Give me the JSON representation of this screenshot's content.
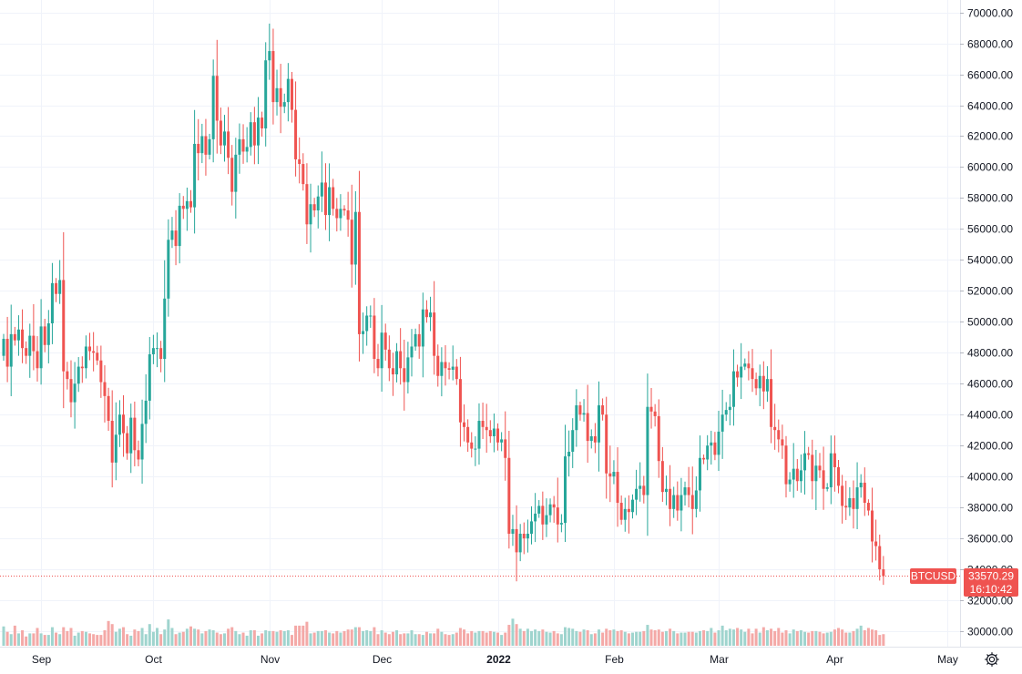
{
  "chart_data": {
    "type": "candlestick",
    "symbol": "BTCUSD",
    "last_price": "33570.29",
    "countdown": "16:10:42",
    "colors": {
      "up": "#26a69a",
      "down": "#ef5350",
      "vol_up": "#9fd4ce",
      "vol_down": "#f4a9a7",
      "grid": "#f0f3fa",
      "axis_line": "#e0e3eb",
      "price_line": "#ef5350"
    },
    "ylim": [
      29000,
      70800
    ],
    "y_ticks": [
      "70000.00",
      "68000.00",
      "66000.00",
      "64000.00",
      "62000.00",
      "60000.00",
      "58000.00",
      "56000.00",
      "54000.00",
      "52000.00",
      "50000.00",
      "48000.00",
      "46000.00",
      "44000.00",
      "42000.00",
      "40000.00",
      "38000.00",
      "36000.00",
      "34000.00",
      "32000.00",
      "30000.00"
    ],
    "x_ticks": [
      {
        "label": "Sep",
        "date": "2021-09-01",
        "bold": false
      },
      {
        "label": "Oct",
        "date": "2021-10-01",
        "bold": false
      },
      {
        "label": "Nov",
        "date": "2021-11-01",
        "bold": false
      },
      {
        "label": "Dec",
        "date": "2021-12-01",
        "bold": false
      },
      {
        "label": "2022",
        "date": "2022-01-01",
        "bold": true
      },
      {
        "label": "Feb",
        "date": "2022-02-01",
        "bold": false
      },
      {
        "label": "Mar",
        "date": "2022-03-01",
        "bold": false
      },
      {
        "label": "Apr",
        "date": "2022-04-01",
        "bold": false
      },
      {
        "label": "May",
        "date": "2022-05-01",
        "bold": false
      }
    ],
    "start_date": "2021-08-22",
    "closes": [
      48900,
      47100,
      49200,
      48800,
      49500,
      48300,
      47800,
      49100,
      48100,
      47000,
      49700,
      48500,
      49900,
      52500,
      51800,
      52700,
      46800,
      46300,
      44800,
      46000,
      47100,
      47000,
      48400,
      48100,
      48000,
      47500,
      46100,
      45200,
      43600,
      40900,
      42700,
      44000,
      42800,
      41500,
      43800,
      41700,
      41100,
      43400,
      44900,
      47900,
      48300,
      48300,
      47600,
      51500,
      55300,
      55900,
      54900,
      57500,
      57300,
      57800,
      57400,
      61500,
      60900,
      62000,
      60800,
      61800,
      65900,
      63000,
      61400,
      62300,
      60600,
      58400,
      60800,
      61800,
      61000,
      61300,
      62900,
      61400,
      63200,
      62500,
      66900,
      67500,
      64200,
      65100,
      63900,
      64200,
      65700,
      63700,
      60500,
      60200,
      58900,
      56300,
      57600,
      57200,
      58100,
      59000,
      56900,
      58700,
      57300,
      56700,
      57300,
      57200,
      56600,
      53700,
      57100,
      49200,
      49400,
      50400,
      50400,
      47600,
      47000,
      49300,
      48200,
      47000,
      46600,
      48100,
      47000,
      46100,
      47700,
      48400,
      49200,
      48400,
      50800,
      50300,
      50600,
      47800,
      46500,
      47400,
      47000,
      46900,
      47100,
      46300,
      43500,
      43200,
      42200,
      41800,
      41800,
      43600,
      43200,
      43000,
      42600,
      43100,
      42200,
      42400,
      41200,
      36300,
      36600,
      35100,
      36300,
      36000,
      36300,
      37100,
      37600,
      38100,
      36900,
      37500,
      38200,
      38000,
      36900,
      37000,
      41300,
      41600,
      43000,
      44600,
      44000,
      44100,
      42300,
      42600,
      42200,
      44600,
      44000,
      40200,
      40000,
      40300,
      38300,
      37200,
      37900,
      37700,
      38500,
      39200,
      39400,
      38800,
      44500,
      44200,
      43900,
      41000,
      39000,
      39200,
      37900,
      38800,
      37800,
      38800,
      39300,
      38800,
      37900,
      39100,
      41200,
      41100,
      42000,
      42200,
      41400,
      42900,
      44000,
      44300,
      44500,
      46800,
      46400,
      47100,
      47300,
      47000,
      46300,
      45700,
      46500,
      45500,
      46300,
      43200,
      43000,
      42400,
      42000,
      39500,
      39800,
      40500,
      39700,
      40400,
      41500,
      41400,
      39700,
      40700,
      40400,
      39200,
      39300,
      41500,
      40600,
      39400,
      38100,
      38000,
      38600,
      37900,
      39300,
      39600,
      38300,
      37800,
      35800,
      35500,
      34000,
      33570
    ],
    "volumes": [
      2.5,
      1.8,
      1.5,
      2.6,
      1.6,
      2.0,
      1.2,
      1.6,
      1.6,
      2.3,
      1.6,
      1.4,
      1.4,
      2.4,
      1.7,
      1.5,
      2.4,
      1.9,
      2.3,
      1.3,
      1.7,
      1.9,
      1.8,
      1.6,
      1.5,
      1.4,
      1.4,
      2.0,
      3.2,
      2.8,
      1.8,
      2.2,
      2.4,
      1.5,
      1.3,
      2.1,
      1.9,
      2.3,
      1.5,
      2.8,
      1.8,
      2.3,
      1.5,
      2.1,
      3.4,
      2.3,
      1.5,
      1.7,
      1.8,
      2.2,
      2.5,
      2.2,
      2.1,
      1.6,
      1.9,
      2.1,
      2.0,
      1.7,
      1.5,
      1.6,
      2.2,
      2.4,
      1.9,
      1.5,
      1.7,
      1.3,
      2.0,
      2.0,
      1.3,
      1.6,
      2.0,
      1.9,
      1.9,
      1.8,
      2.0,
      1.9,
      2.0,
      1.4,
      2.6,
      2.6,
      2.6,
      3.1,
      1.6,
      1.7,
      1.9,
      1.9,
      2.0,
      1.7,
      1.6,
      1.9,
      1.7,
      1.9,
      2.1,
      2.1,
      2.4,
      2.4,
      1.9,
      2.0,
      1.9,
      2.4,
      1.5,
      2.0,
      1.7,
      1.5,
      1.8,
      2.0,
      1.5,
      1.6,
      1.6,
      2.0,
      1.5,
      1.5,
      1.4,
      1.8,
      1.6,
      1.6,
      2.2,
      1.8,
      1.5,
      1.4,
      1.5,
      1.7,
      2.3,
      2.1,
      1.6,
      1.9,
      1.7,
      1.9,
      1.9,
      1.7,
      1.9,
      1.8,
      1.7,
      1.4,
      1.7,
      2.7,
      3.5,
      2.8,
      2.2,
      1.9,
      2.2,
      1.9,
      2.1,
      1.9,
      2.1,
      1.8,
      1.7,
      1.9,
      1.6,
      1.5,
      2.4,
      2.3,
      2.2,
      1.9,
      1.8,
      2.1,
      2.0,
      1.5,
      1.6,
      2.1,
      1.7,
      2.2,
      2.0,
      2.1,
      1.9,
      2.0,
      1.8,
      1.6,
      1.7,
      1.8,
      1.8,
      1.9,
      2.7,
      2.1,
      2.0,
      2.1,
      1.8,
      1.9,
      2.2,
      1.9,
      1.6,
      1.7,
      1.7,
      1.8,
      1.8,
      1.7,
      1.9,
      2.0,
      1.9,
      2.3,
      1.7,
      2.0,
      2.6,
      2.0,
      2.2,
      2.1,
      2.3,
      2.1,
      1.8,
      2.2,
      1.6,
      2.2,
      1.7,
      2.4,
      2.0,
      2.2,
      1.9,
      2.3,
      1.7,
      2.0,
      1.6,
      2.1,
      1.9,
      2.0,
      1.8,
      1.7,
      1.9,
      1.9,
      1.8,
      1.6,
      1.7,
      1.8,
      2.1,
      2.3,
      2.1,
      1.7,
      1.7,
      1.9,
      2.2,
      2.6,
      2.0,
      2.3,
      2.1,
      2.0,
      1.4
    ]
  }
}
